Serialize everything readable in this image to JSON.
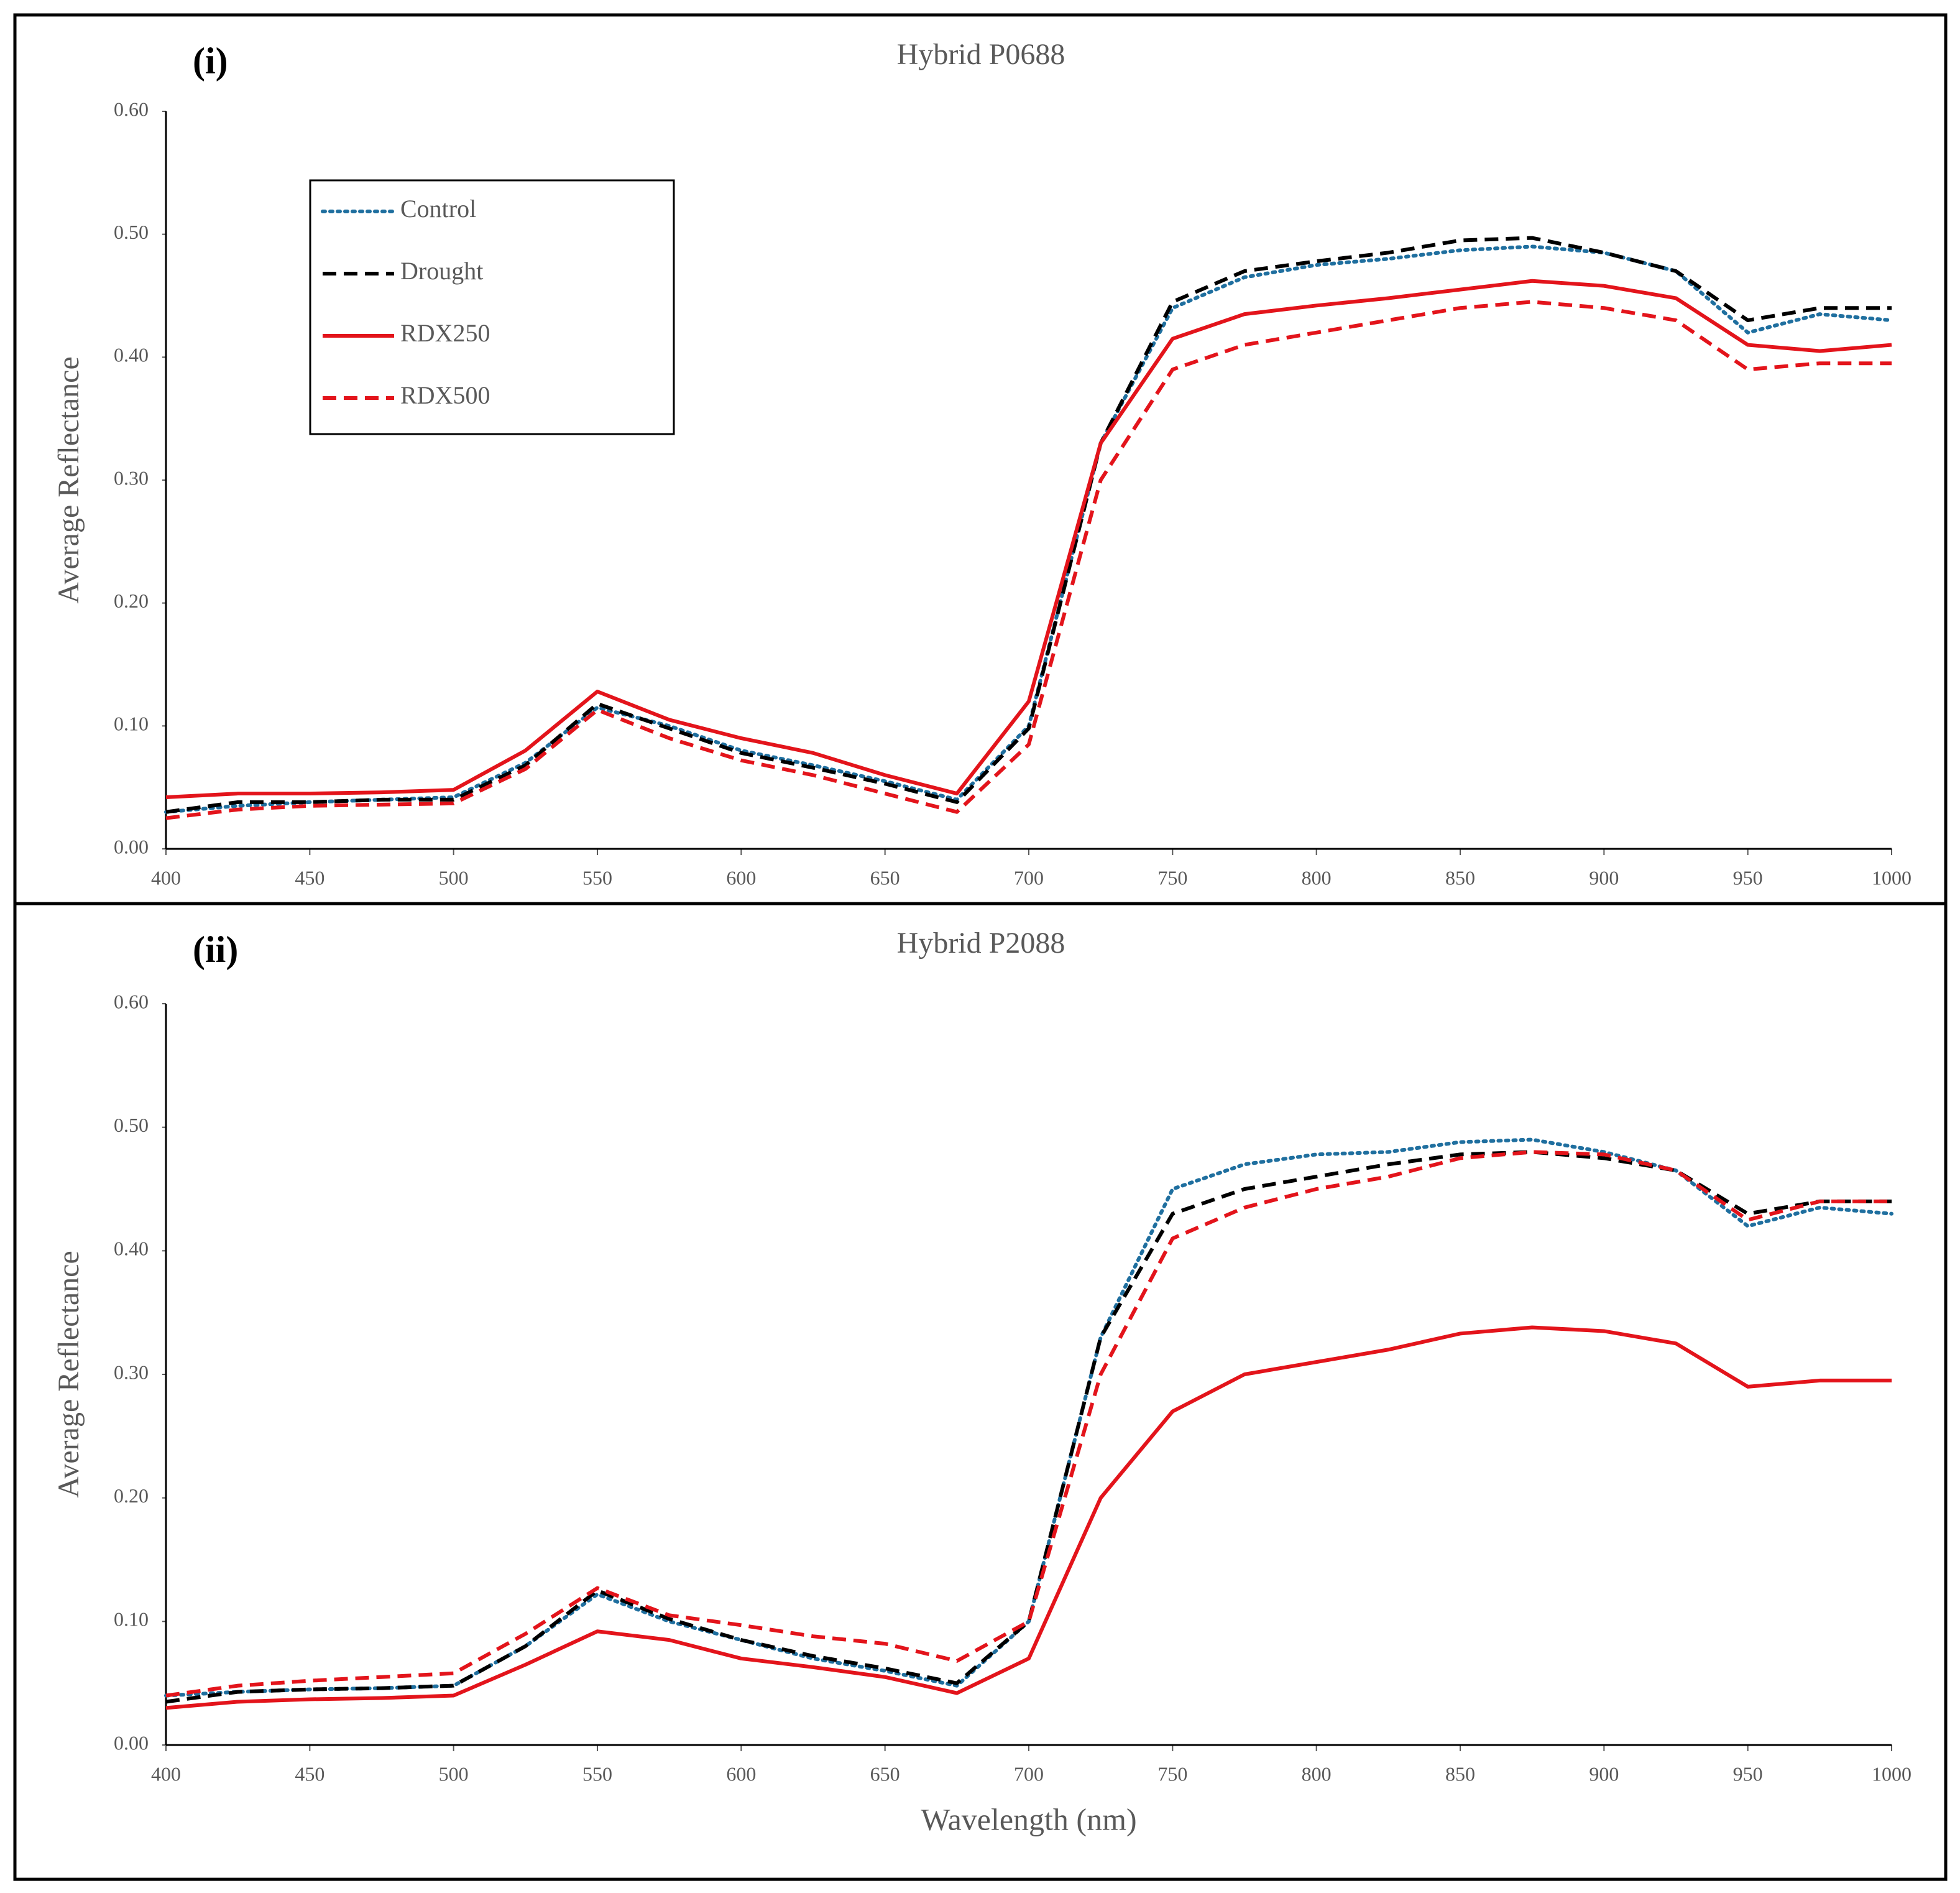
{
  "chart_data": [
    {
      "type": "line",
      "panel": "(i)",
      "title": "Hybrid P0688",
      "y_label": "Average Reflectance",
      "legend": "upper left",
      "x": [
        400,
        425,
        450,
        475,
        500,
        525,
        550,
        575,
        600,
        625,
        650,
        675,
        700,
        725,
        750,
        775,
        800,
        825,
        850,
        875,
        900,
        925,
        950,
        975,
        1000
      ],
      "xlim": [
        400,
        1000
      ],
      "xticks": [
        400,
        450,
        500,
        550,
        600,
        650,
        700,
        750,
        800,
        850,
        900,
        950,
        1000
      ],
      "ylim": [
        0,
        0.6
      ],
      "yticks": [
        {
          "value": 0,
          "label": "0.00"
        },
        {
          "value": 0.1,
          "label": "0.10"
        },
        {
          "value": 0.2,
          "label": "0.20"
        },
        {
          "value": 0.3,
          "label": "0.30"
        },
        {
          "value": 0.4,
          "label": "0.40"
        },
        {
          "value": 0.5,
          "label": "0.50"
        },
        {
          "value": 0.6,
          "label": "0.60"
        }
      ],
      "series": [
        {
          "name": "Control",
          "color": "#1f6f9f",
          "style": "dotted",
          "values": [
            0.03,
            0.035,
            0.038,
            0.04,
            0.042,
            0.07,
            0.115,
            0.1,
            0.08,
            0.068,
            0.055,
            0.04,
            0.1,
            0.33,
            0.44,
            0.465,
            0.475,
            0.48,
            0.487,
            0.49,
            0.485,
            0.47,
            0.42,
            0.435,
            0.43
          ]
        },
        {
          "name": "Drought",
          "color": "#000000",
          "style": "dashed",
          "values": [
            0.03,
            0.038,
            0.038,
            0.04,
            0.04,
            0.068,
            0.118,
            0.098,
            0.078,
            0.066,
            0.053,
            0.038,
            0.098,
            0.33,
            0.445,
            0.47,
            0.478,
            0.485,
            0.495,
            0.497,
            0.485,
            0.47,
            0.43,
            0.44,
            0.44
          ]
        },
        {
          "name": "RDX250",
          "color": "#e3141b",
          "style": "solid",
          "values": [
            0.042,
            0.045,
            0.045,
            0.046,
            0.048,
            0.08,
            0.128,
            0.105,
            0.09,
            0.078,
            0.06,
            0.045,
            0.12,
            0.33,
            0.415,
            0.435,
            0.442,
            0.448,
            0.455,
            0.462,
            0.458,
            0.448,
            0.41,
            0.405,
            0.41
          ]
        },
        {
          "name": "RDX500",
          "color": "#e3141b",
          "style": "dashed",
          "values": [
            0.025,
            0.032,
            0.035,
            0.036,
            0.037,
            0.065,
            0.113,
            0.09,
            0.072,
            0.06,
            0.045,
            0.03,
            0.085,
            0.3,
            0.39,
            0.41,
            0.42,
            0.43,
            0.44,
            0.445,
            0.44,
            0.43,
            0.39,
            0.395,
            0.395
          ]
        }
      ]
    },
    {
      "type": "line",
      "panel": "(ii)",
      "title": "Hybrid P2088",
      "y_label": "Average Reflectance",
      "x_label": "Wavelength (nm)",
      "x": [
        400,
        425,
        450,
        475,
        500,
        525,
        550,
        575,
        600,
        625,
        650,
        675,
        700,
        725,
        750,
        775,
        800,
        825,
        850,
        875,
        900,
        925,
        950,
        975,
        1000
      ],
      "xlim": [
        400,
        1000
      ],
      "xticks": [
        400,
        450,
        500,
        550,
        600,
        650,
        700,
        750,
        800,
        850,
        900,
        950,
        1000
      ],
      "ylim": [
        0,
        0.6
      ],
      "yticks": [
        {
          "value": 0,
          "label": "0.00"
        },
        {
          "value": 0.1,
          "label": "0.10"
        },
        {
          "value": 0.2,
          "label": "0.20"
        },
        {
          "value": 0.3,
          "label": "0.30"
        },
        {
          "value": 0.4,
          "label": "0.40"
        },
        {
          "value": 0.5,
          "label": "0.50"
        },
        {
          "value": 0.6,
          "label": "0.60"
        }
      ],
      "series": [
        {
          "color": "#1f6f9f",
          "style": "dotted",
          "values": [
            0.04,
            0.043,
            0.045,
            0.046,
            0.048,
            0.08,
            0.122,
            0.1,
            0.085,
            0.07,
            0.06,
            0.048,
            0.1,
            0.33,
            0.45,
            0.47,
            0.478,
            0.48,
            0.488,
            0.49,
            0.48,
            0.465,
            0.42,
            0.435,
            0.43
          ]
        },
        {
          "color": "#000000",
          "style": "dashed",
          "values": [
            0.035,
            0.043,
            0.045,
            0.046,
            0.048,
            0.08,
            0.125,
            0.102,
            0.085,
            0.072,
            0.062,
            0.05,
            0.1,
            0.33,
            0.43,
            0.45,
            0.46,
            0.47,
            0.478,
            0.48,
            0.475,
            0.465,
            0.43,
            0.44,
            0.44
          ]
        },
        {
          "color": "#e3141b",
          "style": "solid",
          "values": [
            0.03,
            0.035,
            0.037,
            0.038,
            0.04,
            0.065,
            0.092,
            0.085,
            0.07,
            0.063,
            0.055,
            0.042,
            0.07,
            0.2,
            0.27,
            0.3,
            0.31,
            0.32,
            0.333,
            0.338,
            0.335,
            0.325,
            0.29,
            0.295,
            0.295
          ]
        },
        {
          "color": "#e3141b",
          "style": "dashed",
          "values": [
            0.04,
            0.048,
            0.052,
            0.055,
            0.058,
            0.09,
            0.127,
            0.105,
            0.097,
            0.088,
            0.082,
            0.068,
            0.1,
            0.3,
            0.41,
            0.435,
            0.45,
            0.46,
            0.475,
            0.48,
            0.478,
            0.465,
            0.425,
            0.44,
            0.44
          ]
        }
      ]
    }
  ]
}
